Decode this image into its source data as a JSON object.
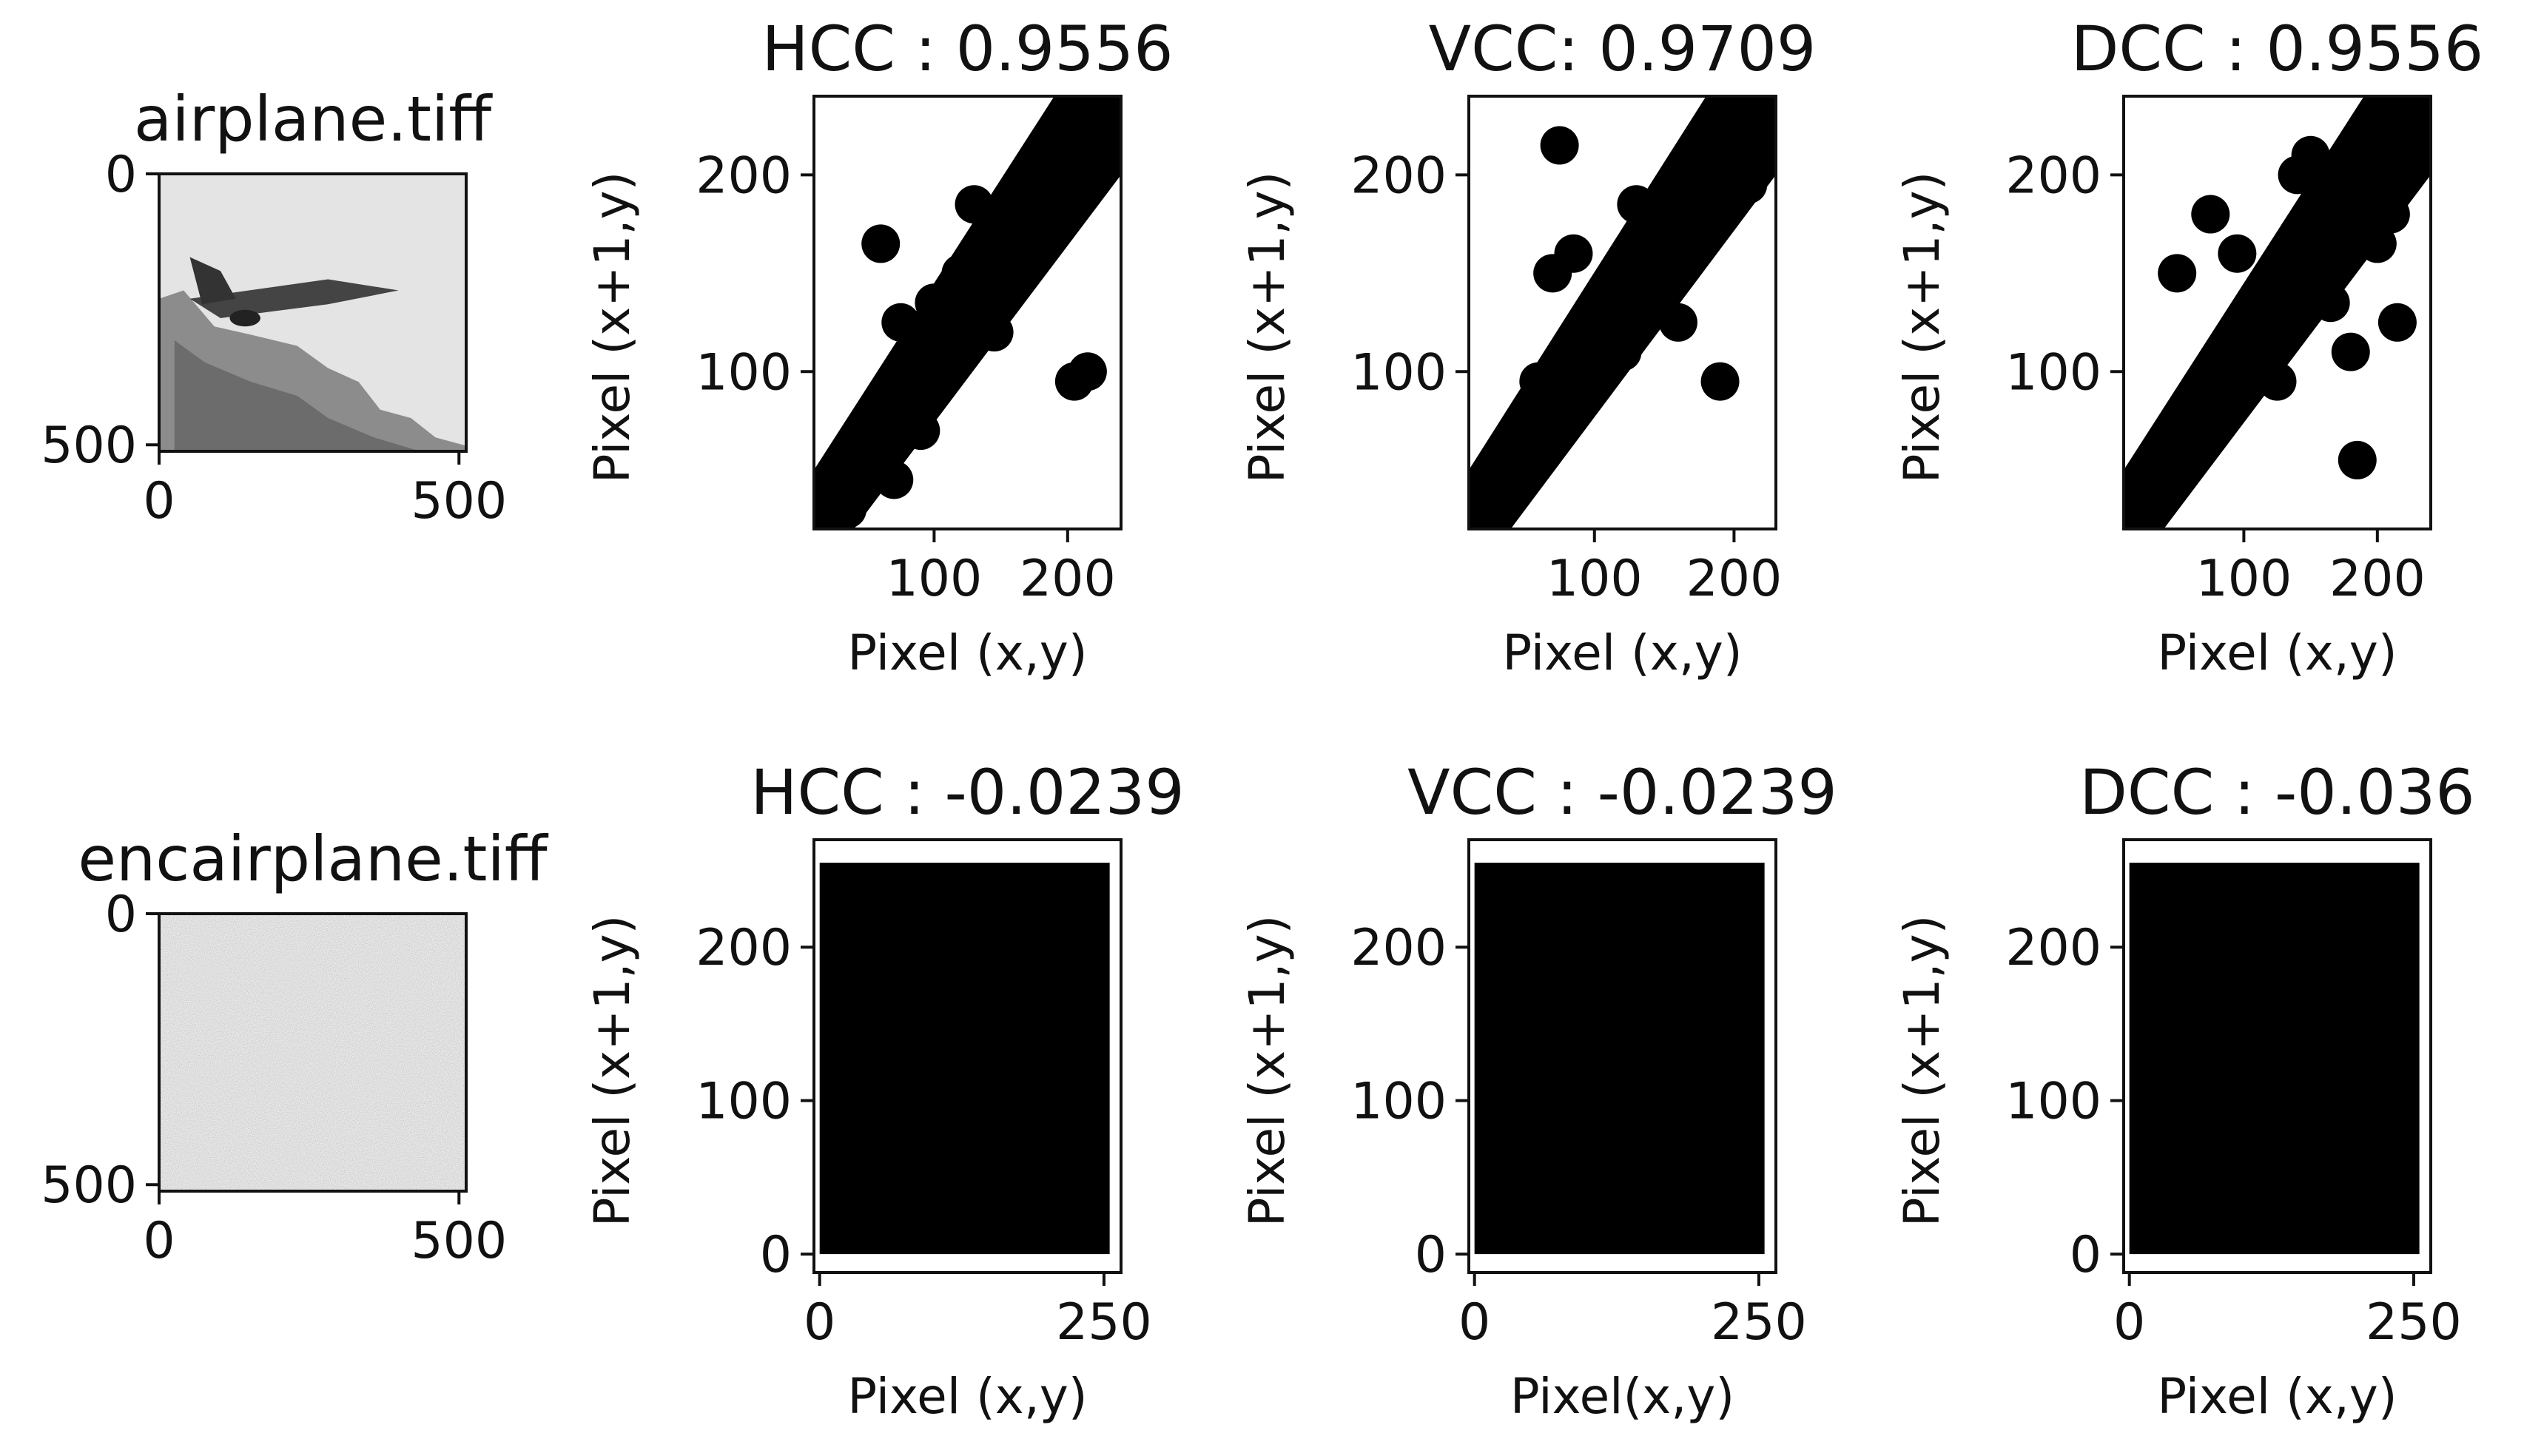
{
  "chart_data": [
    {
      "type": "image",
      "title": "airplane.tiff",
      "xticks": [
        "0",
        "500"
      ],
      "yticks": [
        "0",
        "500"
      ],
      "range": [
        0,
        512
      ],
      "style": "airplane"
    },
    {
      "type": "scatter",
      "title": "HCC :  0.9556",
      "xlabel": "Pixel (x,y)",
      "ylabel": "Pixel (x+1,y)",
      "xlim": [
        10,
        240
      ],
      "ylim": [
        20,
        240
      ],
      "xticks": [
        100,
        200
      ],
      "yticks": [
        100,
        200
      ],
      "x": [
        20,
        40,
        55,
        65,
        80,
        95,
        110,
        125,
        140,
        150,
        160,
        170,
        180,
        190,
        200,
        210,
        220,
        230,
        60,
        75,
        100,
        130,
        145,
        175,
        35,
        50,
        215,
        70,
        90,
        205,
        120,
        160
      ],
      "y": [
        25,
        45,
        60,
        75,
        90,
        105,
        120,
        130,
        145,
        150,
        160,
        170,
        180,
        185,
        195,
        205,
        210,
        215,
        165,
        125,
        135,
        185,
        120,
        200,
        30,
        65,
        100,
        45,
        70,
        95,
        150,
        175
      ]
    },
    {
      "type": "scatter",
      "title": "VCC: 0.9709",
      "xlabel": "Pixel (x,y)",
      "ylabel": "Pixel (x+1,y)",
      "xlim": [
        10,
        230
      ],
      "ylim": [
        20,
        240
      ],
      "xticks": [
        100,
        200
      ],
      "yticks": [
        100,
        200
      ],
      "x": [
        20,
        35,
        50,
        65,
        80,
        95,
        110,
        125,
        140,
        155,
        170,
        185,
        200,
        215,
        225,
        75,
        70,
        85,
        190,
        130,
        160,
        60,
        45,
        100,
        150,
        210,
        120,
        175
      ],
      "y": [
        30,
        45,
        60,
        75,
        90,
        105,
        120,
        135,
        150,
        160,
        175,
        190,
        200,
        210,
        220,
        215,
        150,
        160,
        95,
        185,
        125,
        95,
        55,
        130,
        175,
        195,
        110,
        205
      ]
    },
    {
      "type": "scatter",
      "title": "DCC :  0.9556",
      "xlabel": "Pixel (x,y)",
      "ylabel": "Pixel (x+1,y)",
      "xlim": [
        10,
        240
      ],
      "ylim": [
        20,
        240
      ],
      "xticks": [
        100,
        200
      ],
      "yticks": [
        100,
        200
      ],
      "x": [
        20,
        40,
        55,
        70,
        85,
        100,
        115,
        130,
        145,
        160,
        175,
        190,
        205,
        220,
        230,
        50,
        75,
        110,
        140,
        180,
        210,
        185,
        60,
        95,
        125,
        165,
        200,
        35,
        150,
        215
      ],
      "y": [
        30,
        50,
        60,
        85,
        100,
        120,
        135,
        150,
        165,
        170,
        185,
        195,
        205,
        215,
        220,
        150,
        180,
        115,
        200,
        110,
        180,
        55,
        70,
        160,
        95,
        135,
        165,
        40,
        210,
        125
      ]
    },
    {
      "type": "image",
      "title": "encairplane.tiff",
      "xticks": [
        "0",
        "500"
      ],
      "yticks": [
        "0",
        "500"
      ],
      "range": [
        0,
        512
      ],
      "style": "noise"
    },
    {
      "type": "scatter",
      "title": "HCC :  -0.0239",
      "xlabel": "Pixel (x,y)",
      "ylabel": "Pixel (x+1,y)",
      "xlim": [
        -5,
        265
      ],
      "ylim": [
        -12,
        270
      ],
      "xticks": [
        0,
        250
      ],
      "yticks": [
        0,
        100,
        200
      ],
      "fill_range": [
        [
          0,
          255
        ],
        [
          0,
          255
        ]
      ]
    },
    {
      "type": "scatter",
      "title": "VCC :  -0.0239",
      "xlabel": "Pixel(x,y)",
      "ylabel": "Pixel (x+1,y)",
      "xlim": [
        -5,
        265
      ],
      "ylim": [
        -12,
        270
      ],
      "xticks": [
        0,
        250
      ],
      "yticks": [
        0,
        100,
        200
      ],
      "fill_range": [
        [
          0,
          255
        ],
        [
          0,
          255
        ]
      ]
    },
    {
      "type": "scatter",
      "title": "DCC :  -0.036",
      "xlabel": "Pixel (x,y)",
      "ylabel": "Pixel (x+1,y)",
      "xlim": [
        -5,
        265
      ],
      "ylim": [
        -12,
        270
      ],
      "xticks": [
        0,
        250
      ],
      "yticks": [
        0,
        100,
        200
      ],
      "fill_range": [
        [
          0,
          255
        ],
        [
          0,
          255
        ]
      ]
    }
  ]
}
